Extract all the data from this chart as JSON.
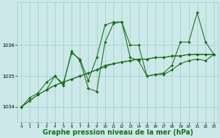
{
  "background_color": "#cce8e8",
  "grid_color": "#99cccc",
  "line_color": "#1a6e1a",
  "marker_color": "#1a6e1a",
  "xlabel": "Graphe pression niveau de la mer (hPa)",
  "xlabel_fontsize": 7,
  "yticks": [
    1034,
    1035,
    1036
  ],
  "xticks": [
    0,
    1,
    2,
    3,
    4,
    5,
    6,
    7,
    8,
    9,
    10,
    11,
    12,
    13,
    14,
    15,
    16,
    17,
    18,
    19,
    20,
    21,
    22,
    23
  ],
  "xlim": [
    -0.5,
    23.5
  ],
  "ylim": [
    1033.5,
    1037.4
  ],
  "lines": [
    {
      "x": [
        0,
        1,
        2,
        3,
        4,
        5,
        6,
        7,
        8,
        9,
        10,
        11,
        12,
        13,
        14,
        15,
        16,
        17,
        18,
        19,
        20,
        21,
        22,
        23
      ],
      "y": [
        1034.0,
        1034.2,
        1034.4,
        1034.55,
        1034.7,
        1034.8,
        1034.9,
        1035.0,
        1035.1,
        1035.2,
        1035.3,
        1035.4,
        1035.45,
        1035.5,
        1035.55,
        1035.55,
        1035.6,
        1035.6,
        1035.65,
        1035.65,
        1035.7,
        1035.7,
        1035.7,
        1035.7
      ]
    },
    {
      "x": [
        0,
        1,
        2,
        3,
        4,
        5,
        6,
        7,
        8,
        9,
        10,
        11,
        12,
        13,
        14,
        15,
        16,
        17,
        18,
        19,
        20,
        21,
        22,
        23
      ],
      "y": [
        1034.0,
        1034.2,
        1034.4,
        1034.55,
        1034.7,
        1034.8,
        1034.9,
        1035.0,
        1035.1,
        1035.2,
        1035.35,
        1035.4,
        1035.45,
        1035.5,
        1035.55,
        1035.55,
        1035.6,
        1035.6,
        1035.65,
        1035.65,
        1035.7,
        1035.7,
        1035.7,
        1035.7
      ]
    },
    {
      "x": [
        0,
        1,
        2,
        3,
        4,
        5,
        6,
        7,
        8,
        9,
        10,
        11,
        12,
        13,
        14,
        15,
        16,
        17,
        18,
        19,
        20,
        21,
        22,
        23
      ],
      "y": [
        1034.0,
        1034.3,
        1034.45,
        1034.8,
        1035.0,
        1034.75,
        1035.75,
        1035.55,
        1034.85,
        1035.6,
        1036.65,
        1036.75,
        1036.75,
        1036.0,
        1036.0,
        1035.0,
        1035.05,
        1035.1,
        1035.35,
        1036.1,
        1036.1,
        1037.05,
        1036.1,
        1035.7
      ]
    },
    {
      "x": [
        3,
        4,
        5,
        6,
        7,
        8,
        9,
        10,
        11,
        12,
        13,
        14,
        15,
        16,
        17,
        18,
        19,
        20,
        21,
        22,
        23
      ],
      "y": [
        1034.55,
        1035.0,
        1034.7,
        1035.8,
        1035.5,
        1034.6,
        1034.5,
        1036.1,
        1036.7,
        1036.75,
        1035.6,
        1035.5,
        1035.0,
        1035.05,
        1035.05,
        1035.2,
        1035.4,
        1035.5,
        1035.55,
        1035.5,
        1035.7
      ]
    }
  ]
}
